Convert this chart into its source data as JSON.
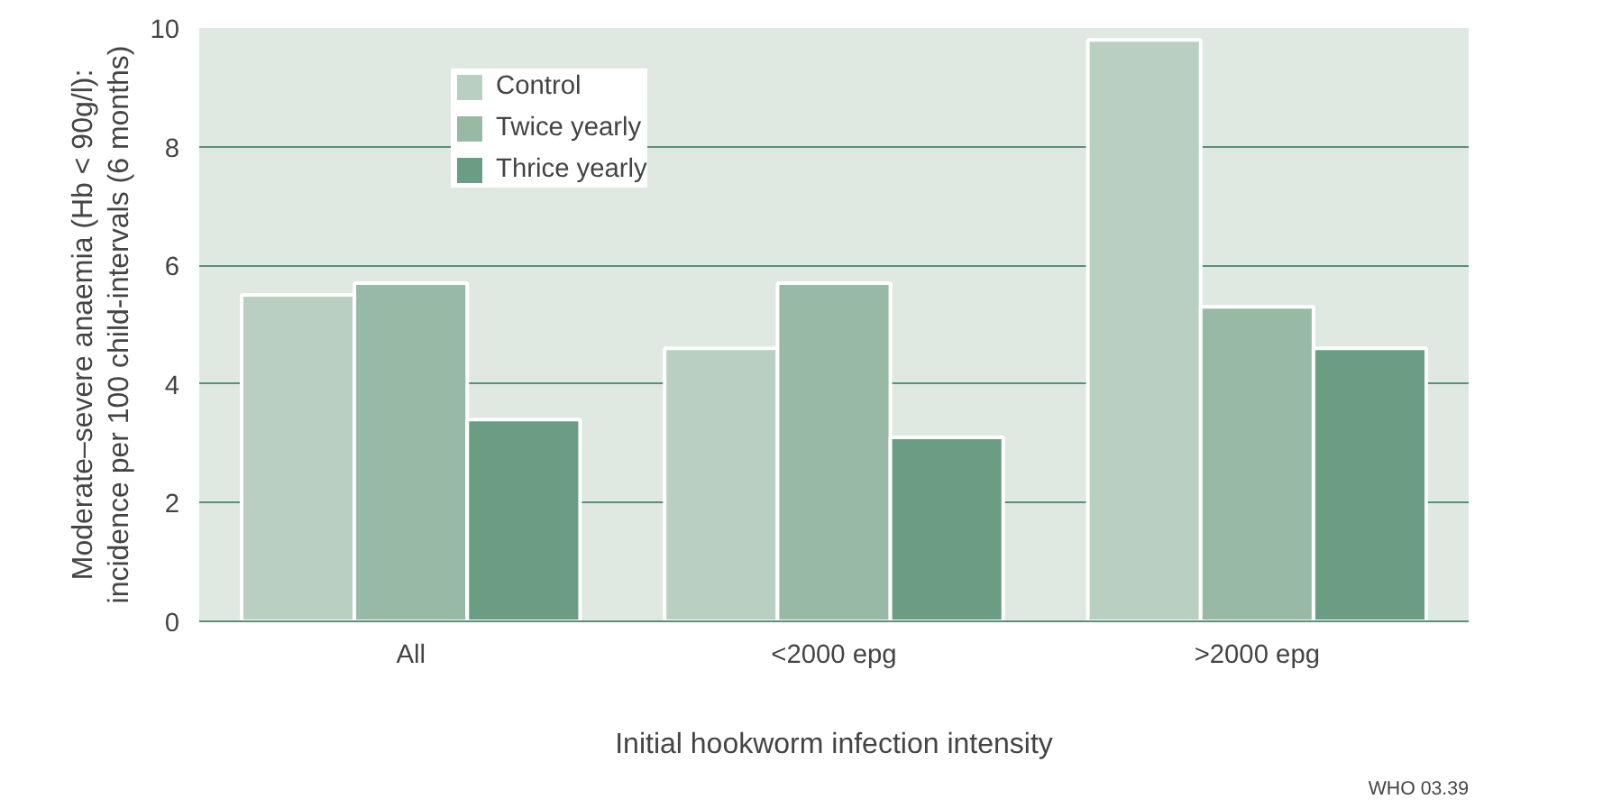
{
  "chart_data": {
    "type": "bar",
    "xlabel": "Initial hookworm infection intensity",
    "ylabel": "Moderate–severe anaemia (Hb < 90g/l):\nincidence per 100 child-intervals (6 months)",
    "categories": [
      "All",
      "<2000 epg",
      ">2000 epg"
    ],
    "series": [
      {
        "name": "Control",
        "color": "#b9cfc1",
        "values": [
          5.5,
          4.6,
          9.8
        ]
      },
      {
        "name": "Twice yearly",
        "color": "#98b9a6",
        "values": [
          5.7,
          5.7,
          5.3
        ]
      },
      {
        "name": "Thrice yearly",
        "color": "#6b9c84",
        "values": [
          3.4,
          3.1,
          4.6
        ]
      }
    ],
    "ylim": [
      0,
      10
    ],
    "yticks": [
      0,
      2,
      4,
      6,
      8,
      10
    ],
    "grid": "y",
    "legend": "top left",
    "annotations": [
      "WHO 03.39"
    ]
  }
}
